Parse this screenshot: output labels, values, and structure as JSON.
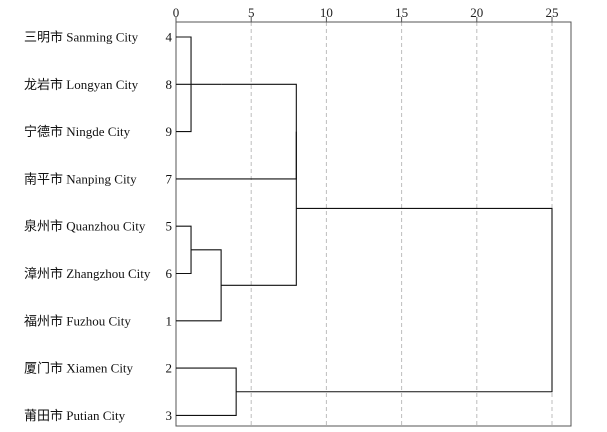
{
  "chart_data": {
    "type": "dendrogram",
    "x_ticks": [
      0,
      5,
      10,
      15,
      20,
      25
    ],
    "xlim": [
      0,
      26.5
    ],
    "grid": true,
    "grid_style": "dashed vertical",
    "leaves": [
      {
        "name": "三明市 Sanming City",
        "id": "4"
      },
      {
        "name": "龙岩市 Longyan City",
        "id": "8"
      },
      {
        "name": "宁德市 Ningde City",
        "id": "9"
      },
      {
        "name": "南平市 Nanping City",
        "id": "7"
      },
      {
        "name": "泉州市 Quanzhou City",
        "id": "5"
      },
      {
        "name": "漳州市 Zhangzhou City",
        "id": "6"
      },
      {
        "name": "福州市 Fuzhou City",
        "id": "1"
      },
      {
        "name": "厦门市 Xiamen City",
        "id": "2"
      },
      {
        "name": "莆田市 Putian City",
        "id": "3"
      }
    ],
    "merges": [
      {
        "a": "L0",
        "b": "L2",
        "height": 1
      },
      {
        "a": "L1",
        "b": "C0",
        "height": 3
      },
      {
        "a": "L4",
        "b": "L5",
        "height": 1
      },
      {
        "a": "L6",
        "b": "C2",
        "height": 3
      },
      {
        "a": "L7",
        "b": "L8",
        "height": 4
      },
      {
        "a": "C1",
        "b": "L3",
        "height": 8
      },
      {
        "a": "C5",
        "b": "C3",
        "height": 8
      },
      {
        "a": "C6",
        "b": "C4",
        "height": 25
      }
    ]
  }
}
